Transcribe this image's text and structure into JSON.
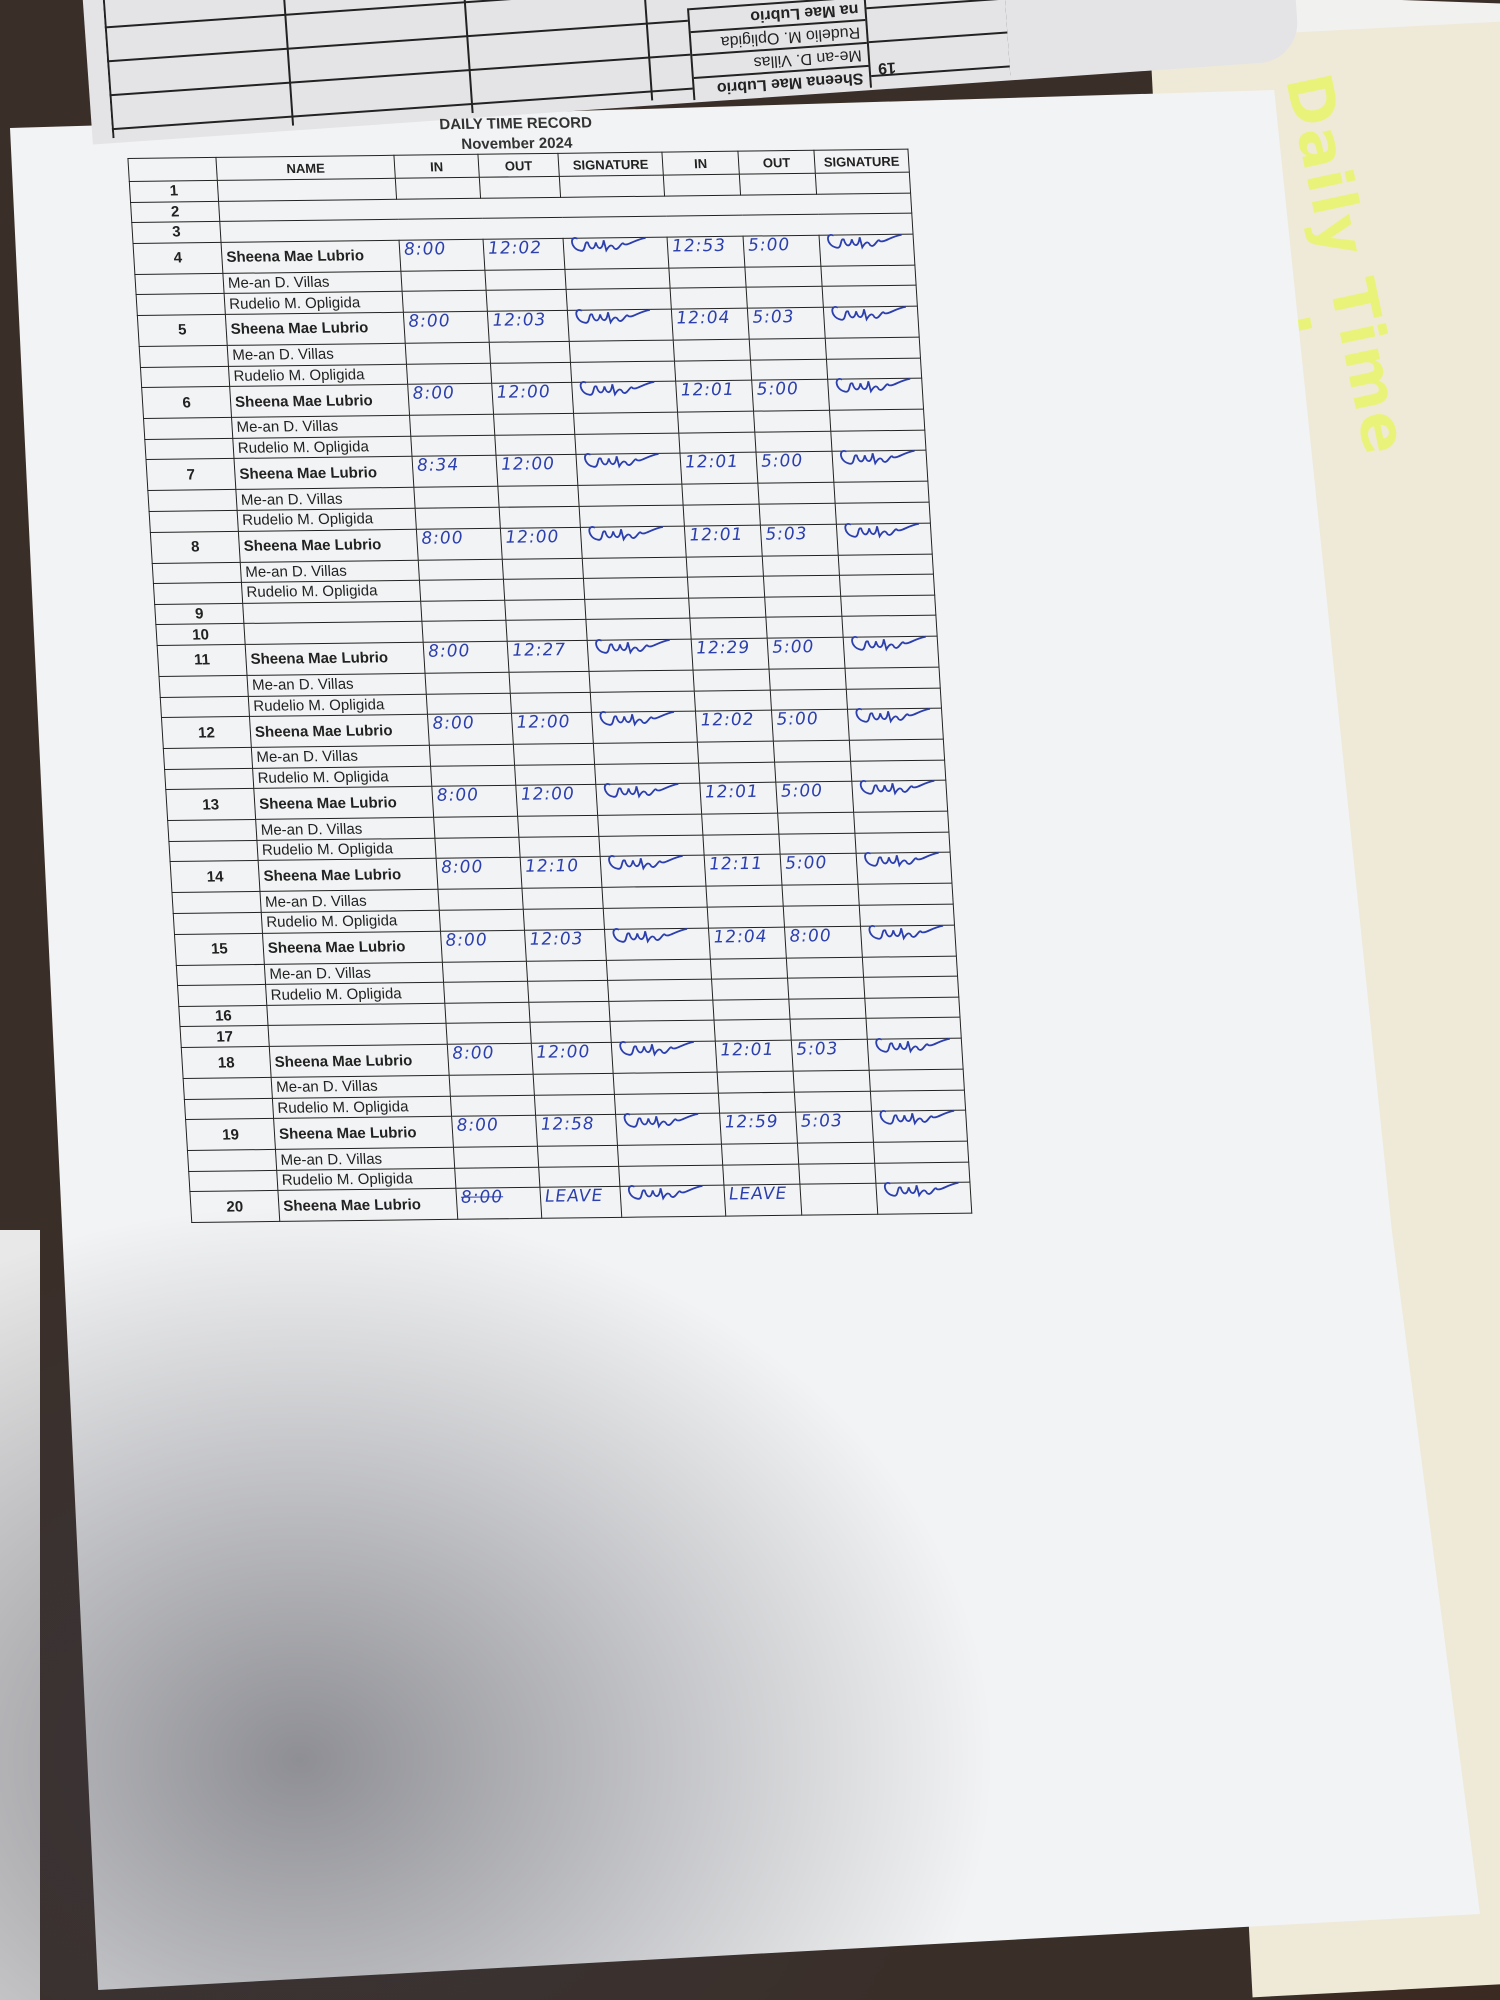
{
  "background": {
    "folder_label": "Daily Time Record",
    "previous_page": {
      "day": "19",
      "names": [
        "Sheena Mae Lubrio",
        "Me-an D. Villas",
        "Rudelio M. Opligida",
        "na Mae Lubrio"
      ]
    }
  },
  "document": {
    "title": "DAILY TIME RECORD",
    "month": "November 2024",
    "columns": [
      "",
      "NAME",
      "IN",
      "OUT",
      "SIGNATURE",
      "IN",
      "OUT",
      "SIGNATURE"
    ],
    "ink_color": "#2b3fae",
    "rows": [
      {
        "day": "1",
        "name": "",
        "am_in": "",
        "am_out": "",
        "am_sig": false,
        "pm_in": "",
        "pm_out": "",
        "pm_sig": false
      },
      {
        "day": "2",
        "name": "",
        "merged": true
      },
      {
        "day": "3",
        "name": "",
        "merged": true
      },
      {
        "day": "4",
        "name": "Sheena Mae Lubrio",
        "am_in": "8:00",
        "am_out": "12:02",
        "am_sig": true,
        "pm_in": "12:53",
        "pm_out": "5:00",
        "pm_sig": true
      },
      {
        "day": "",
        "name": "Me-an D. Villas"
      },
      {
        "day": "",
        "name": "Rudelio M. Opligida"
      },
      {
        "day": "5",
        "name": "Sheena Mae Lubrio",
        "am_in": "8:00",
        "am_out": "12:03",
        "am_sig": true,
        "pm_in": "12:04",
        "pm_out": "5:03",
        "pm_sig": true
      },
      {
        "day": "",
        "name": "Me-an D. Villas"
      },
      {
        "day": "",
        "name": "Rudelio M. Opligida"
      },
      {
        "day": "6",
        "name": "Sheena Mae Lubrio",
        "am_in": "8:00",
        "am_out": "12:00",
        "am_sig": true,
        "pm_in": "12:01",
        "pm_out": "5:00",
        "pm_sig": true
      },
      {
        "day": "",
        "name": "Me-an D. Villas"
      },
      {
        "day": "",
        "name": "Rudelio M. Opligida"
      },
      {
        "day": "7",
        "name": "Sheena Mae Lubrio",
        "am_in": "8:34",
        "am_out": "12:00",
        "am_sig": true,
        "pm_in": "12:01",
        "pm_out": "5:00",
        "pm_sig": true
      },
      {
        "day": "",
        "name": "Me-an D. Villas"
      },
      {
        "day": "",
        "name": "Rudelio M. Opligida"
      },
      {
        "day": "8",
        "name": "Sheena Mae Lubrio",
        "am_in": "8:00",
        "am_out": "12:00",
        "am_sig": true,
        "pm_in": "12:01",
        "pm_out": "5:03",
        "pm_sig": true
      },
      {
        "day": "",
        "name": "Me-an D. Villas"
      },
      {
        "day": "",
        "name": "Rudelio M. Opligida"
      },
      {
        "day": "9",
        "name": ""
      },
      {
        "day": "10",
        "name": ""
      },
      {
        "day": "11",
        "name": "Sheena Mae Lubrio",
        "am_in": "8:00",
        "am_out": "12:27",
        "am_sig": true,
        "pm_in": "12:29",
        "pm_out": "5:00",
        "pm_sig": true
      },
      {
        "day": "",
        "name": "Me-an D. Villas"
      },
      {
        "day": "",
        "name": "Rudelio M. Opligida"
      },
      {
        "day": "12",
        "name": "Sheena Mae Lubrio",
        "am_in": "8:00",
        "am_out": "12:00",
        "am_sig": true,
        "pm_in": "12:02",
        "pm_out": "5:00",
        "pm_sig": true
      },
      {
        "day": "",
        "name": "Me-an D. Villas"
      },
      {
        "day": "",
        "name": "Rudelio M. Opligida"
      },
      {
        "day": "13",
        "name": "Sheena Mae Lubrio",
        "am_in": "8:00",
        "am_out": "12:00",
        "am_sig": true,
        "pm_in": "12:01",
        "pm_out": "5:00",
        "pm_sig": true
      },
      {
        "day": "",
        "name": "Me-an D. Villas"
      },
      {
        "day": "",
        "name": "Rudelio M. Opligida"
      },
      {
        "day": "14",
        "name": "Sheena Mae Lubrio",
        "am_in": "8:00",
        "am_out": "12:10",
        "am_sig": true,
        "pm_in": "12:11",
        "pm_out": "5:00",
        "pm_sig": true
      },
      {
        "day": "",
        "name": "Me-an D. Villas"
      },
      {
        "day": "",
        "name": "Rudelio M. Opligida"
      },
      {
        "day": "15",
        "name": "Sheena Mae Lubrio",
        "am_in": "8:00",
        "am_out": "12:03",
        "am_sig": true,
        "pm_in": "12:04",
        "pm_out": "8:00",
        "pm_sig": true
      },
      {
        "day": "",
        "name": "Me-an D. Villas"
      },
      {
        "day": "",
        "name": "Rudelio M. Opligida"
      },
      {
        "day": "16",
        "name": ""
      },
      {
        "day": "17",
        "name": ""
      },
      {
        "day": "18",
        "name": "Sheena Mae Lubrio",
        "am_in": "8:00",
        "am_out": "12:00",
        "am_sig": true,
        "pm_in": "12:01",
        "pm_out": "5:03",
        "pm_sig": true
      },
      {
        "day": "",
        "name": "Me-an D. Villas"
      },
      {
        "day": "",
        "name": "Rudelio M. Opligida"
      },
      {
        "day": "19",
        "name": "Sheena Mae Lubrio",
        "am_in": "8:00",
        "am_out": "12:58",
        "am_sig": true,
        "pm_in": "12:59",
        "pm_out": "5:03",
        "pm_sig": true
      },
      {
        "day": "",
        "name": "Me-an D. Villas"
      },
      {
        "day": "",
        "name": "Rudelio M. Opligida"
      },
      {
        "day": "20",
        "name": "Sheena Mae Lubrio",
        "am_in": "8:00",
        "am_in_struck": true,
        "am_out": "LEAVE",
        "am_sig": true,
        "pm_in": "LEAVE",
        "pm_out": "",
        "pm_sig": true
      }
    ]
  }
}
